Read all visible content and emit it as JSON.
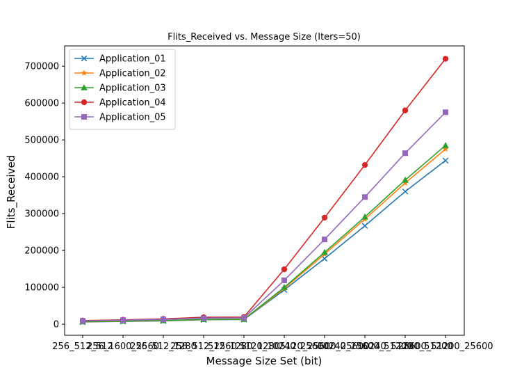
{
  "chart_data": {
    "type": "line",
    "title": "Flits_Received vs. Message Size (Iters=50)",
    "xlabel": "Message Size Set (bit)",
    "ylabel": "Flits_Received",
    "categories": [
      "256_512_512",
      "256_1600_2560",
      "256_512_1280",
      "256_512_2560",
      "512_1280_1280",
      "5120_10240_25600",
      "5120_25600_25600",
      "10240_25600_51200",
      "10240_51200_51200",
      "25600_51200_25600"
    ],
    "ylim": [
      -30000,
      755000
    ],
    "yticks": [
      0,
      100000,
      200000,
      300000,
      400000,
      500000,
      600000,
      700000
    ],
    "grid": false,
    "legend_position": "top-left",
    "series": [
      {
        "name": "Application_01",
        "color": "#1f77b4",
        "marker": "x",
        "values": [
          6000,
          7500,
          9000,
          12000,
          12500,
          93000,
          178000,
          267000,
          360000,
          444000
        ]
      },
      {
        "name": "Application_02",
        "color": "#ff7f0e",
        "marker": "star",
        "values": [
          6500,
          8000,
          9500,
          12500,
          13000,
          97000,
          190000,
          285000,
          383000,
          475000
        ]
      },
      {
        "name": "Application_03",
        "color": "#2ca02c",
        "marker": "triangle",
        "values": [
          7000,
          8500,
          10000,
          13000,
          13500,
          100000,
          195000,
          291000,
          391000,
          485000
        ]
      },
      {
        "name": "Application_04",
        "color": "#d62728",
        "marker": "circle",
        "values": [
          10000,
          12000,
          14500,
          19000,
          19500,
          149000,
          289000,
          432000,
          580000,
          720000
        ]
      },
      {
        "name": "Application_05",
        "color": "#9467bd",
        "marker": "square",
        "values": [
          9000,
          11000,
          13000,
          16500,
          17000,
          119000,
          230000,
          345000,
          464000,
          575000
        ]
      }
    ]
  }
}
